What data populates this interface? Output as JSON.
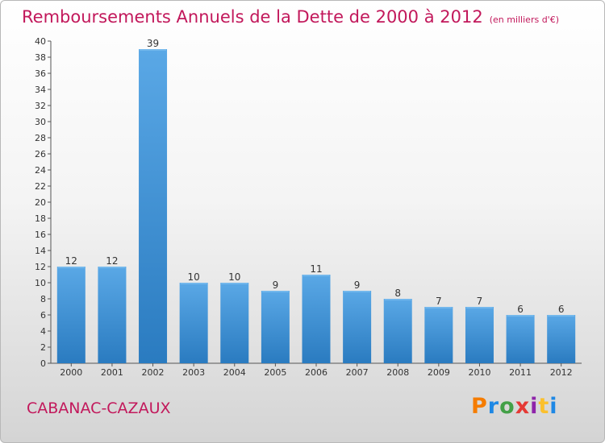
{
  "header": {
    "title": "Remboursements Annuels de la Dette de 2000 à 2012",
    "unit": "(en milliers d'€)"
  },
  "footer": {
    "commune": "CABANAC-CAZAUX",
    "logo": "Proxiti",
    "logo_colors": [
      "#f57c00",
      "#1e88e5",
      "#43a047",
      "#e53935",
      "#8e24aa",
      "#fbc02d",
      "#1e88e5"
    ]
  },
  "colors": {
    "bar_light": "#5aa8e6",
    "bar_dark": "#2a7bc0",
    "title": "#c2185b"
  },
  "chart_data": {
    "type": "bar",
    "title": "Remboursements Annuels de la Dette de 2000 à 2012",
    "categories": [
      "2000",
      "2001",
      "2002",
      "2003",
      "2004",
      "2005",
      "2006",
      "2007",
      "2008",
      "2009",
      "2010",
      "2011",
      "2012"
    ],
    "values": [
      12,
      12,
      39,
      10,
      10,
      9,
      11,
      9,
      8,
      7,
      7,
      6,
      6
    ],
    "ylim": [
      0,
      40
    ],
    "ytick_step": 2,
    "grid": false,
    "legend": "none"
  }
}
